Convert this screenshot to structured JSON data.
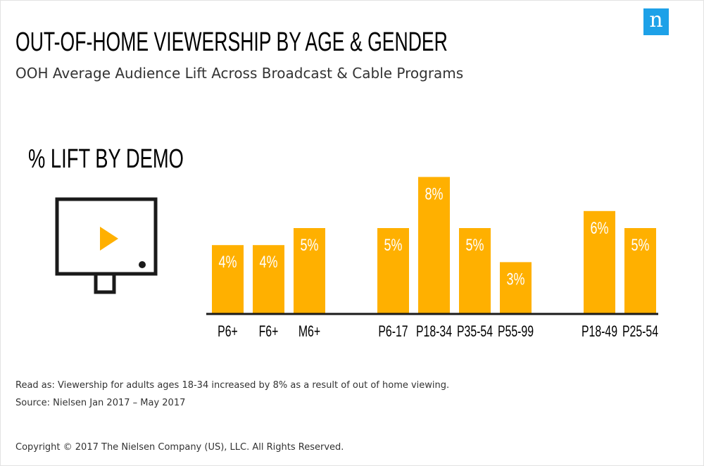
{
  "logo": {
    "letter": "n"
  },
  "header": {
    "title": "OUT-OF-HOME VIEWERSHIP BY AGE & GENDER",
    "subtitle": "OOH Average Audience Lift Across Broadcast & Cable Programs"
  },
  "section": {
    "title": "% LIFT BY DEMO"
  },
  "icon": {
    "name": "tv-play-icon"
  },
  "colors": {
    "bar": "#ffb000",
    "axis": "#1a1a1a",
    "icon_play": "#ffb000"
  },
  "chart_data": {
    "type": "bar",
    "categories": [
      "P6+",
      "F6+",
      "M6+",
      "P6-17",
      "P18-34",
      "P35-54",
      "P55-99",
      "P18-49",
      "P25-54"
    ],
    "values": [
      4,
      4,
      5,
      5,
      8,
      5,
      3,
      6,
      5
    ],
    "data_labels": [
      "4%",
      "4%",
      "5%",
      "5%",
      "8%",
      "5%",
      "3%",
      "6%",
      "5%"
    ],
    "groups": [
      [
        0,
        1,
        2
      ],
      [
        3,
        4,
        5,
        6
      ],
      [
        7,
        8
      ]
    ],
    "ylim": [
      0,
      8
    ],
    "grid": false,
    "legend": "none"
  },
  "footer": {
    "read_as": "Read as: Viewership for adults ages 18-34 increased by 8% as a result of out of home viewing.",
    "source": "Source: Nielsen Jan 2017 – May 2017",
    "copyright": "Copyright © 2017 The Nielsen Company (US), LLC. All Rights Reserved."
  }
}
